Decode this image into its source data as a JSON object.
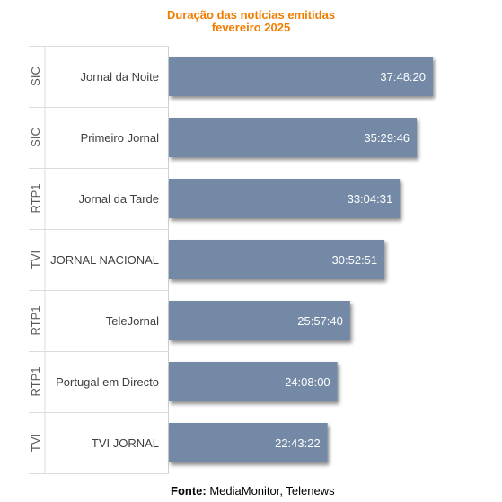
{
  "chart_data": {
    "type": "bar",
    "orientation": "horizontal",
    "title": "Duração das notícias emitidas",
    "subtitle": "fevereiro 2025",
    "categories": [
      "Jornal da Noite",
      "Primeiro Jornal",
      "Jornal da Tarde",
      "JORNAL NACIONAL",
      "TeleJornal",
      "Portugal em Directo",
      "TVI JORNAL"
    ],
    "groups": [
      "SIC",
      "SIC",
      "RTP1",
      "TVI",
      "RTP1",
      "RTP1",
      "TVI"
    ],
    "values": [
      136100,
      127786,
      119071,
      111171,
      93460,
      86880,
      81802
    ],
    "value_labels": [
      "37:48:20",
      "35:29:46",
      "33:04:31",
      "30:52:51",
      "25:57:40",
      "24:08:00",
      "22:43:22"
    ],
    "value_unit": "seconds",
    "bar_color": "#7389a6",
    "title_color": "#f07d00",
    "grid": false,
    "legend": "none"
  },
  "source": {
    "label": "Fonte:",
    "text": "MediaMonitor, Telenews"
  }
}
